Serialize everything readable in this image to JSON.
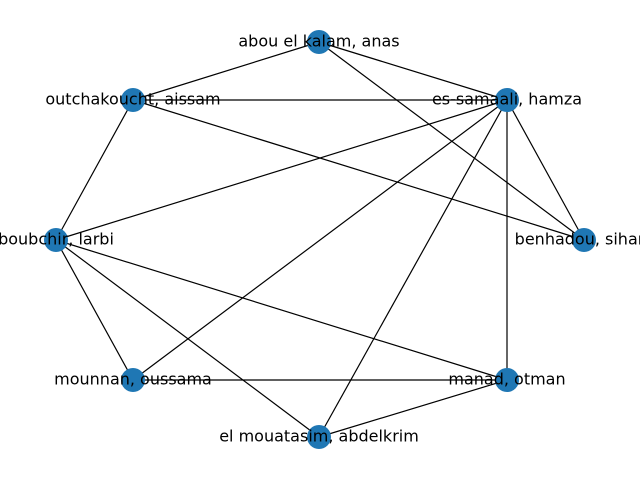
{
  "graph": {
    "node_color": "#1f77b4",
    "edge_color": "#000000",
    "nodes": [
      {
        "id": "abou",
        "label": "abou el kalam, anas"
      },
      {
        "id": "samaali",
        "label": "es-samaali, hamza"
      },
      {
        "id": "outch",
        "label": "outchakoucht, aissam"
      },
      {
        "id": "boubchir",
        "label": "boubchir, larbi"
      },
      {
        "id": "benhadou",
        "label": "benhadou, siham"
      },
      {
        "id": "mounnan",
        "label": "mounnan, oussama"
      },
      {
        "id": "manad",
        "label": "manad, otman"
      },
      {
        "id": "mouatasim",
        "label": "el mouatasim, abdelkrim"
      }
    ],
    "edges": [
      [
        "abou",
        "samaali"
      ],
      [
        "abou",
        "outch"
      ],
      [
        "abou",
        "benhadou"
      ],
      [
        "outch",
        "samaali"
      ],
      [
        "outch",
        "boubchir"
      ],
      [
        "outch",
        "benhadou"
      ],
      [
        "samaali",
        "benhadou"
      ],
      [
        "samaali",
        "boubchir"
      ],
      [
        "samaali",
        "mounnan"
      ],
      [
        "samaali",
        "mouatasim"
      ],
      [
        "samaali",
        "manad"
      ],
      [
        "boubchir",
        "mounnan"
      ],
      [
        "boubchir",
        "manad"
      ],
      [
        "boubchir",
        "mouatasim"
      ],
      [
        "mounnan",
        "manad"
      ],
      [
        "manad",
        "mouatasim"
      ]
    ]
  }
}
